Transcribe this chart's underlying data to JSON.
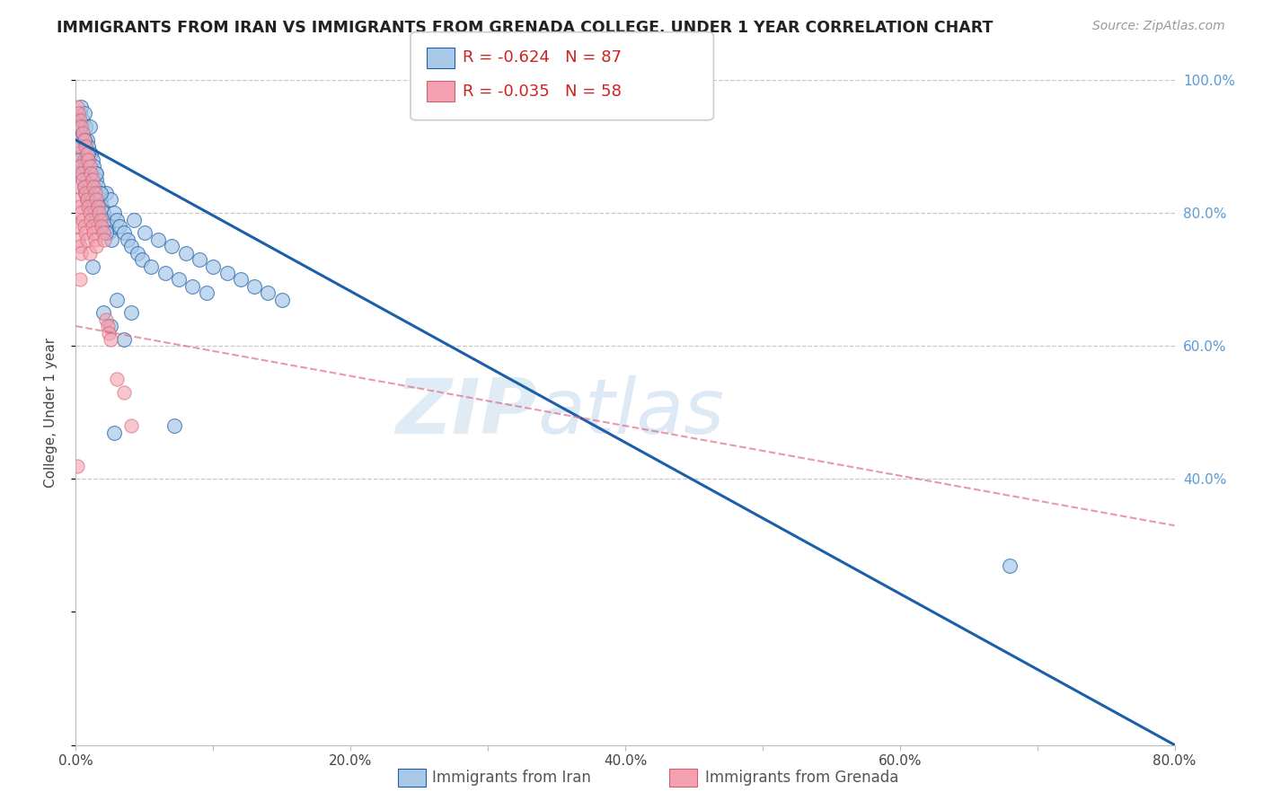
{
  "title": "IMMIGRANTS FROM IRAN VS IMMIGRANTS FROM GRENADA COLLEGE, UNDER 1 YEAR CORRELATION CHART",
  "source": "Source: ZipAtlas.com",
  "ylabel": "College, Under 1 year",
  "R1": -0.624,
  "N1": 87,
  "R2": -0.035,
  "N2": 58,
  "color_iran": "#a8c8e8",
  "color_grenada": "#f4a0b0",
  "color_line_iran": "#1a5fa8",
  "color_line_grenada": "#e06080",
  "color_right_axis": "#5b9bd5",
  "color_grid": "#c8c8c8",
  "legend_label1": "Immigrants from Iran",
  "legend_label2": "Immigrants from Grenada",
  "xmin": 0.0,
  "xmax": 0.8,
  "ymin": 0.0,
  "ymax": 1.0,
  "iran_x": [
    0.001,
    0.002,
    0.002,
    0.003,
    0.003,
    0.004,
    0.004,
    0.004,
    0.005,
    0.005,
    0.005,
    0.006,
    0.006,
    0.006,
    0.007,
    0.007,
    0.007,
    0.008,
    0.008,
    0.008,
    0.009,
    0.009,
    0.01,
    0.01,
    0.01,
    0.011,
    0.011,
    0.012,
    0.012,
    0.013,
    0.013,
    0.014,
    0.014,
    0.015,
    0.015,
    0.016,
    0.016,
    0.017,
    0.018,
    0.019,
    0.02,
    0.021,
    0.022,
    0.023,
    0.024,
    0.025,
    0.026,
    0.028,
    0.03,
    0.032,
    0.035,
    0.038,
    0.04,
    0.042,
    0.045,
    0.048,
    0.05,
    0.055,
    0.06,
    0.065,
    0.07,
    0.075,
    0.08,
    0.085,
    0.09,
    0.095,
    0.1,
    0.11,
    0.12,
    0.13,
    0.14,
    0.15,
    0.02,
    0.025,
    0.03,
    0.035,
    0.04,
    0.012,
    0.008,
    0.006,
    0.018,
    0.022,
    0.028,
    0.072,
    0.68,
    0.015,
    0.009
  ],
  "iran_y": [
    0.91,
    0.93,
    0.89,
    0.95,
    0.88,
    0.96,
    0.9,
    0.87,
    0.94,
    0.92,
    0.86,
    0.95,
    0.88,
    0.84,
    0.93,
    0.87,
    0.83,
    0.91,
    0.85,
    0.82,
    0.9,
    0.84,
    0.93,
    0.87,
    0.81,
    0.89,
    0.83,
    0.88,
    0.82,
    0.87,
    0.81,
    0.86,
    0.8,
    0.85,
    0.79,
    0.84,
    0.78,
    0.83,
    0.82,
    0.81,
    0.8,
    0.79,
    0.83,
    0.78,
    0.77,
    0.82,
    0.76,
    0.8,
    0.79,
    0.78,
    0.77,
    0.76,
    0.75,
    0.79,
    0.74,
    0.73,
    0.77,
    0.72,
    0.76,
    0.71,
    0.75,
    0.7,
    0.74,
    0.69,
    0.73,
    0.68,
    0.72,
    0.71,
    0.7,
    0.69,
    0.68,
    0.67,
    0.65,
    0.63,
    0.67,
    0.61,
    0.65,
    0.72,
    0.88,
    0.91,
    0.83,
    0.77,
    0.47,
    0.48,
    0.27,
    0.86,
    0.89
  ],
  "grenada_x": [
    0.001,
    0.001,
    0.001,
    0.001,
    0.002,
    0.002,
    0.002,
    0.002,
    0.003,
    0.003,
    0.003,
    0.003,
    0.003,
    0.004,
    0.004,
    0.004,
    0.004,
    0.005,
    0.005,
    0.005,
    0.006,
    0.006,
    0.006,
    0.007,
    0.007,
    0.007,
    0.008,
    0.008,
    0.008,
    0.009,
    0.009,
    0.01,
    0.01,
    0.01,
    0.011,
    0.011,
    0.012,
    0.012,
    0.013,
    0.013,
    0.014,
    0.014,
    0.015,
    0.015,
    0.016,
    0.017,
    0.018,
    0.019,
    0.02,
    0.021,
    0.022,
    0.023,
    0.024,
    0.025,
    0.03,
    0.035,
    0.04,
    0.001
  ],
  "grenada_y": [
    0.96,
    0.9,
    0.84,
    0.78,
    0.95,
    0.88,
    0.82,
    0.76,
    0.94,
    0.87,
    0.81,
    0.75,
    0.7,
    0.93,
    0.86,
    0.8,
    0.74,
    0.92,
    0.85,
    0.79,
    0.91,
    0.84,
    0.78,
    0.9,
    0.83,
    0.77,
    0.89,
    0.82,
    0.76,
    0.88,
    0.81,
    0.87,
    0.8,
    0.74,
    0.86,
    0.79,
    0.85,
    0.78,
    0.84,
    0.77,
    0.83,
    0.76,
    0.82,
    0.75,
    0.81,
    0.8,
    0.79,
    0.78,
    0.77,
    0.76,
    0.64,
    0.63,
    0.62,
    0.61,
    0.55,
    0.53,
    0.48,
    0.42
  ],
  "iran_line_x": [
    0.0,
    0.8
  ],
  "iran_line_y": [
    0.91,
    0.0
  ],
  "grenada_line_x": [
    0.0,
    0.8
  ],
  "grenada_line_y": [
    0.63,
    0.33
  ],
  "watermark_zip": "ZIP",
  "watermark_atlas": "atlas",
  "background_color": "#ffffff"
}
